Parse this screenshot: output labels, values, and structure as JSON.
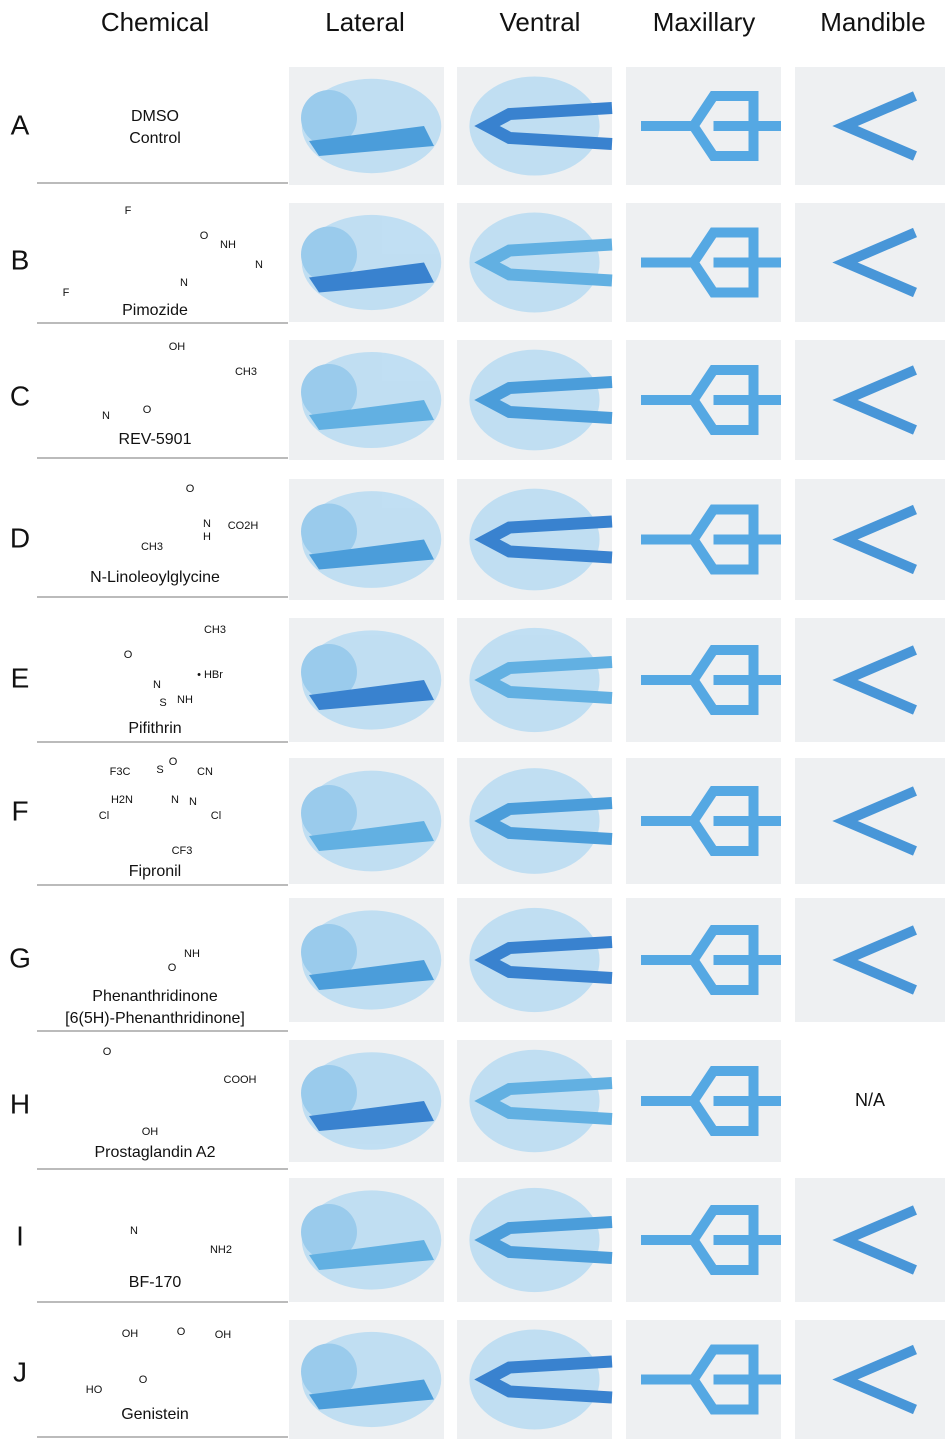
{
  "headers": [
    "Chemical",
    "Lateral",
    "Ventral",
    "Maxillary",
    "Mandible"
  ],
  "rows": [
    {
      "letter": "A",
      "name": [
        "DMSO",
        "Control"
      ],
      "atoms": []
    },
    {
      "letter": "B",
      "name": [
        "Pimozide"
      ],
      "atoms": [
        "F",
        "O",
        "NH",
        "N",
        "N",
        "F"
      ]
    },
    {
      "letter": "C",
      "name": [
        "REV-5901"
      ],
      "atoms": [
        "OH",
        "CH3",
        "N",
        "O"
      ]
    },
    {
      "letter": "D",
      "name": [
        "N-Linoleoylglycine"
      ],
      "atoms": [
        "O",
        "N",
        "H",
        "CO2H",
        "CH3"
      ]
    },
    {
      "letter": "E",
      "name": [
        "Pifithrin"
      ],
      "atoms": [
        "CH3",
        "O",
        "N",
        "• HBr",
        "S",
        "NH"
      ]
    },
    {
      "letter": "F",
      "name": [
        "Fipronil"
      ],
      "atoms": [
        "F3C",
        "S",
        "O",
        "CN",
        "H2N",
        "N",
        "N",
        "Cl",
        "Cl",
        "CF3"
      ]
    },
    {
      "letter": "G",
      "name": [
        "Phenanthridinone",
        "[6(5H)-Phenanthridinone]"
      ],
      "atoms": [
        "NH",
        "O"
      ]
    },
    {
      "letter": "H",
      "name": [
        "Prostaglandin A2"
      ],
      "atoms": [
        "O",
        "COOH",
        "OH"
      ],
      "mandible": "N/A"
    },
    {
      "letter": "I",
      "name": [
        "BF-170"
      ],
      "atoms": [
        "N",
        "NH2"
      ]
    },
    {
      "letter": "J",
      "name": [
        "Genistein"
      ],
      "atoms": [
        "OH",
        "O",
        "OH",
        "HO",
        "O"
      ]
    }
  ]
}
